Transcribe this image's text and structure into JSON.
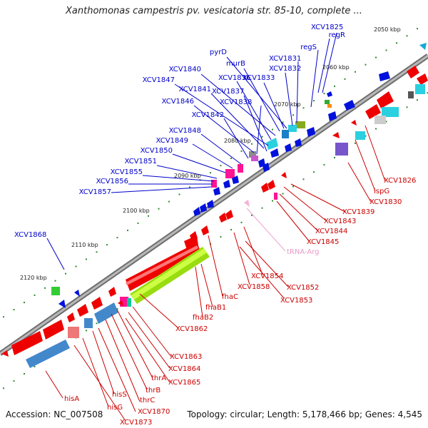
{
  "header": {
    "title": "Xanthomonas campestris pv. vesicatoria str. 85-10, complete ..."
  },
  "footer": {
    "accession": "Accession: NC_007508",
    "topology": "Topology: circular; Length: 5,178,466 bp; Genes: 4,545"
  },
  "ticks": [
    {
      "label": "2050 kbp"
    },
    {
      "label": "2060 kbp"
    },
    {
      "label": "2070 kbp"
    },
    {
      "label": "2080 kbp"
    },
    {
      "label": "2090 kbp"
    },
    {
      "label": "2100 kbp"
    },
    {
      "label": "2110 kbp"
    },
    {
      "label": "2120 kbp"
    }
  ],
  "genes_forward": [
    {
      "label": "XCV1825"
    },
    {
      "label": "regR"
    },
    {
      "label": "regS"
    },
    {
      "label": "XCV1831"
    },
    {
      "label": "pyrD"
    },
    {
      "label": "murB"
    },
    {
      "label": "XCV1832"
    },
    {
      "label": "XCV1840"
    },
    {
      "label": "XCV1836"
    },
    {
      "label": "XCV1833"
    },
    {
      "label": "XCV1847"
    },
    {
      "label": "XCV1841"
    },
    {
      "label": "XCV1837"
    },
    {
      "label": "XCV1846"
    },
    {
      "label": "XCV1838"
    },
    {
      "label": "XCV1842"
    },
    {
      "label": "XCV1848"
    },
    {
      "label": "XCV1849"
    },
    {
      "label": "XCV1850"
    },
    {
      "label": "XCV1851"
    },
    {
      "label": "XCV1855"
    },
    {
      "label": "XCV1856"
    },
    {
      "label": "XCV1857"
    },
    {
      "label": "XCV1868"
    }
  ],
  "genes_reverse": [
    {
      "label": "XCV1826"
    },
    {
      "label": "ispG"
    },
    {
      "label": "XCV1830"
    },
    {
      "label": "XCV1839"
    },
    {
      "label": "XCV1843"
    },
    {
      "label": "XCV1844"
    },
    {
      "label": "XCV1845"
    },
    {
      "label": "XCV1854"
    },
    {
      "label": "XCV1858"
    },
    {
      "label": "XCV1852"
    },
    {
      "label": "XCV1853"
    },
    {
      "label": "fhaC"
    },
    {
      "label": "fhaB1"
    },
    {
      "label": "fhaB2"
    },
    {
      "label": "XCV1862"
    },
    {
      "label": "XCV1863"
    },
    {
      "label": "XCV1864"
    },
    {
      "label": "XCV1865"
    },
    {
      "label": "thrA"
    },
    {
      "label": "thrB"
    },
    {
      "label": "thrC"
    },
    {
      "label": "hisS"
    },
    {
      "label": "XCV1870"
    },
    {
      "label": "hisG"
    },
    {
      "label": "hisA"
    },
    {
      "label": "XCV1873"
    }
  ],
  "rna_labels": [
    {
      "label": "tRNA-Arg"
    }
  ],
  "colors": {
    "backbone": "#8a8a8a",
    "forward_label": "#0000cc",
    "reverse_label": "#cc0000",
    "trna_label": "#e89ac8",
    "tick_dot": "#2e8b2e"
  }
}
